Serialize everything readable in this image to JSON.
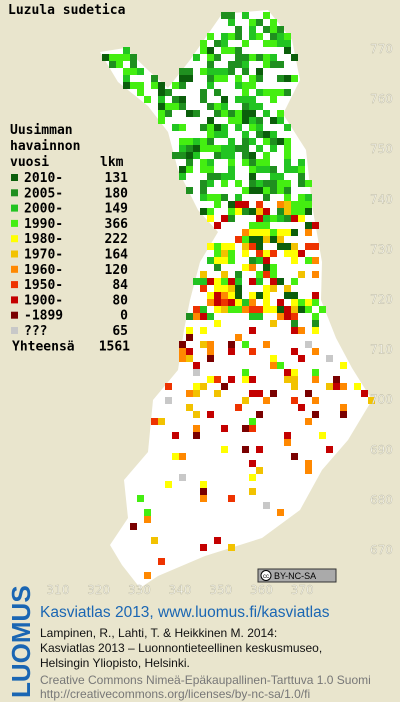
{
  "title": "Luzula sudetica",
  "legend": {
    "heading": [
      "Uusimman",
      "havainnon"
    ],
    "col_year": "vuosi",
    "col_count": "lkm",
    "entries": [
      {
        "label": "2010-",
        "count": 131,
        "color": "#0b5e0b"
      },
      {
        "label": "2005-",
        "count": 180,
        "color": "#1f8f1f"
      },
      {
        "label": "2000-",
        "count": 149,
        "color": "#22c422"
      },
      {
        "label": "1990-",
        "count": 366,
        "color": "#44ee11"
      },
      {
        "label": "1980-",
        "count": 222,
        "color": "#ffff00"
      },
      {
        "label": "1970-",
        "count": 164,
        "color": "#f2c200"
      },
      {
        "label": "1960-",
        "count": 120,
        "color": "#ff8800"
      },
      {
        "label": "1950-",
        "count": 84,
        "color": "#ee3300"
      },
      {
        "label": "1900-",
        "count": 80,
        "color": "#c40000"
      },
      {
        "label": "-1899",
        "count": 0,
        "color": "#7a0000"
      },
      {
        "label": "???",
        "count": 65,
        "color": "#c8c8c8"
      }
    ],
    "total_label": "Yhteensä",
    "total": 1561
  },
  "axes": {
    "yticks": [
      770,
      760,
      750,
      740,
      730,
      720,
      710,
      700,
      690,
      680,
      670
    ],
    "xticks": [
      310,
      320,
      330,
      340,
      350,
      360,
      370
    ]
  },
  "badge": [
    "cc",
    "BY-NC-SA"
  ],
  "footer": {
    "logo": "LUOMUS",
    "link": "Kasviatlas 2013, www.luomus.fi/kasviatlas",
    "citation": [
      "Lampinen, R., Lahti, T. & Heikkinen M. 2014:",
      "Kasviatlas 2013 – Luonnontieteellinen keskusmuseo,",
      "Helsingin Yliopisto, Helsinki."
    ],
    "license": [
      "Creative Commons Nimeä-Epäkaupallinen-Tarttuva 1.0 Suomi",
      "http://creativecommons.org/licenses/by-nc-sa/1.0/fi"
    ]
  }
}
